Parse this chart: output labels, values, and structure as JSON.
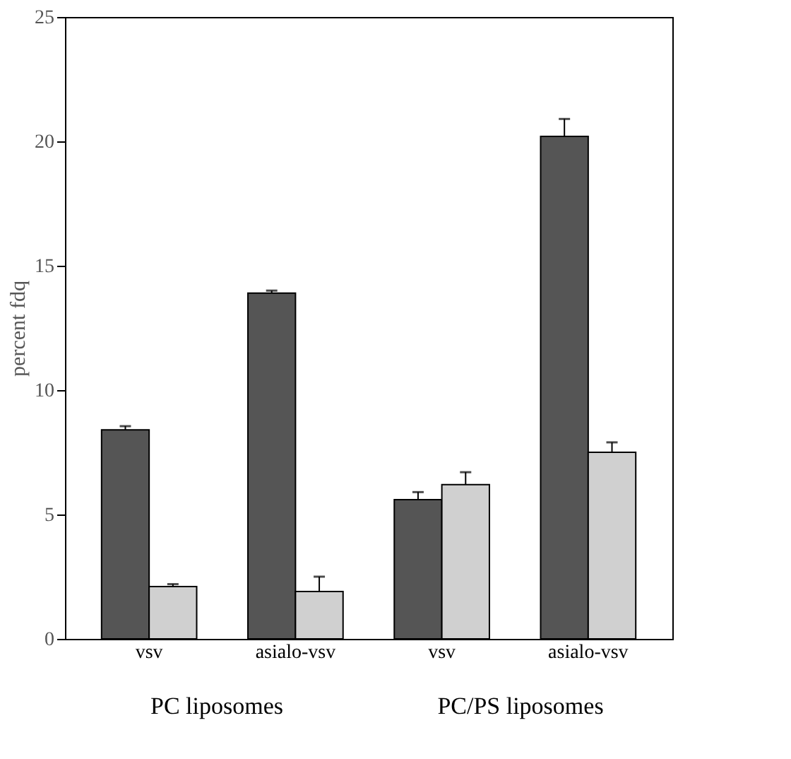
{
  "chart_data": {
    "type": "bar",
    "ylabel": "percent fdq",
    "categories": [
      "vsv",
      "asialo-vsv",
      "vsv",
      "asialo-vsv"
    ],
    "series": [
      {
        "color": "#555555",
        "values": [
          8.4,
          13.9,
          5.6,
          20.2
        ],
        "errors": [
          0.15,
          0.1,
          0.3,
          0.7
        ]
      },
      {
        "color": "#d0d0d0",
        "values": [
          2.1,
          1.9,
          6.2,
          7.5
        ],
        "errors": [
          0.1,
          0.6,
          0.5,
          0.4
        ]
      }
    ],
    "annotations": [
      "PC liposomes",
      "PC/PS liposomes"
    ],
    "ylim": [
      0,
      25
    ],
    "yticks": [
      0,
      5,
      10,
      15,
      20,
      25
    ],
    "grid": false,
    "legend": false
  }
}
